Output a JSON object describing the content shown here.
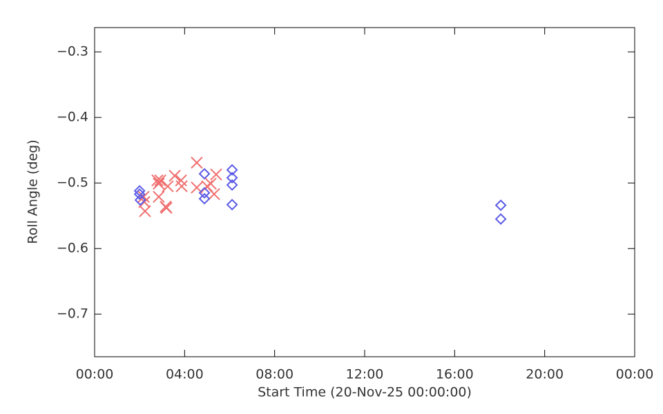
{
  "chart_data": {
    "type": "scatter",
    "xlabel": "Start Time (20-Nov-25 00:00:00)",
    "ylabel": "Roll Angle (deg)",
    "xlim": [
      0,
      24
    ],
    "ylim": [
      -0.765,
      -0.263
    ],
    "xticks": [
      {
        "value": 0,
        "label": "00:00"
      },
      {
        "value": 4,
        "label": "04:00"
      },
      {
        "value": 8,
        "label": "08:00"
      },
      {
        "value": 12,
        "label": "12:00"
      },
      {
        "value": 16,
        "label": "16:00"
      },
      {
        "value": 20,
        "label": "20:00"
      },
      {
        "value": 24,
        "label": "00:00"
      }
    ],
    "yticks": [
      {
        "value": -0.7,
        "label": "−0.7"
      },
      {
        "value": -0.6,
        "label": "−0.6"
      },
      {
        "value": -0.5,
        "label": "−0.5"
      },
      {
        "value": -0.4,
        "label": "−0.4"
      },
      {
        "value": -0.3,
        "label": "−0.3"
      }
    ],
    "series": [
      {
        "marker": "x",
        "color": "#f07070",
        "x": [
          2.18,
          2.24,
          2.21,
          2.79,
          2.85,
          2.92,
          2.85,
          3.16,
          3.19,
          3.25,
          3.56,
          3.84,
          3.87,
          4.54,
          4.54,
          5.0,
          5.31,
          5.4,
          5.16
        ],
        "values": [
          -0.521,
          -0.543,
          -0.529,
          -0.496,
          -0.501,
          -0.496,
          -0.521,
          -0.536,
          -0.538,
          -0.505,
          -0.489,
          -0.496,
          -0.505,
          -0.469,
          -0.507,
          -0.505,
          -0.517,
          -0.487,
          -0.501
        ]
      },
      {
        "marker": "diamond",
        "color": "#5a5ae6",
        "x": [
          2.0,
          2.0,
          2.03,
          4.88,
          4.88,
          4.88,
          6.11,
          6.11,
          6.11,
          6.11,
          18.05,
          18.05
        ],
        "values": [
          -0.512,
          -0.517,
          -0.526,
          -0.486,
          -0.515,
          -0.524,
          -0.48,
          -0.492,
          -0.503,
          -0.533,
          -0.534,
          -0.555
        ]
      }
    ]
  }
}
